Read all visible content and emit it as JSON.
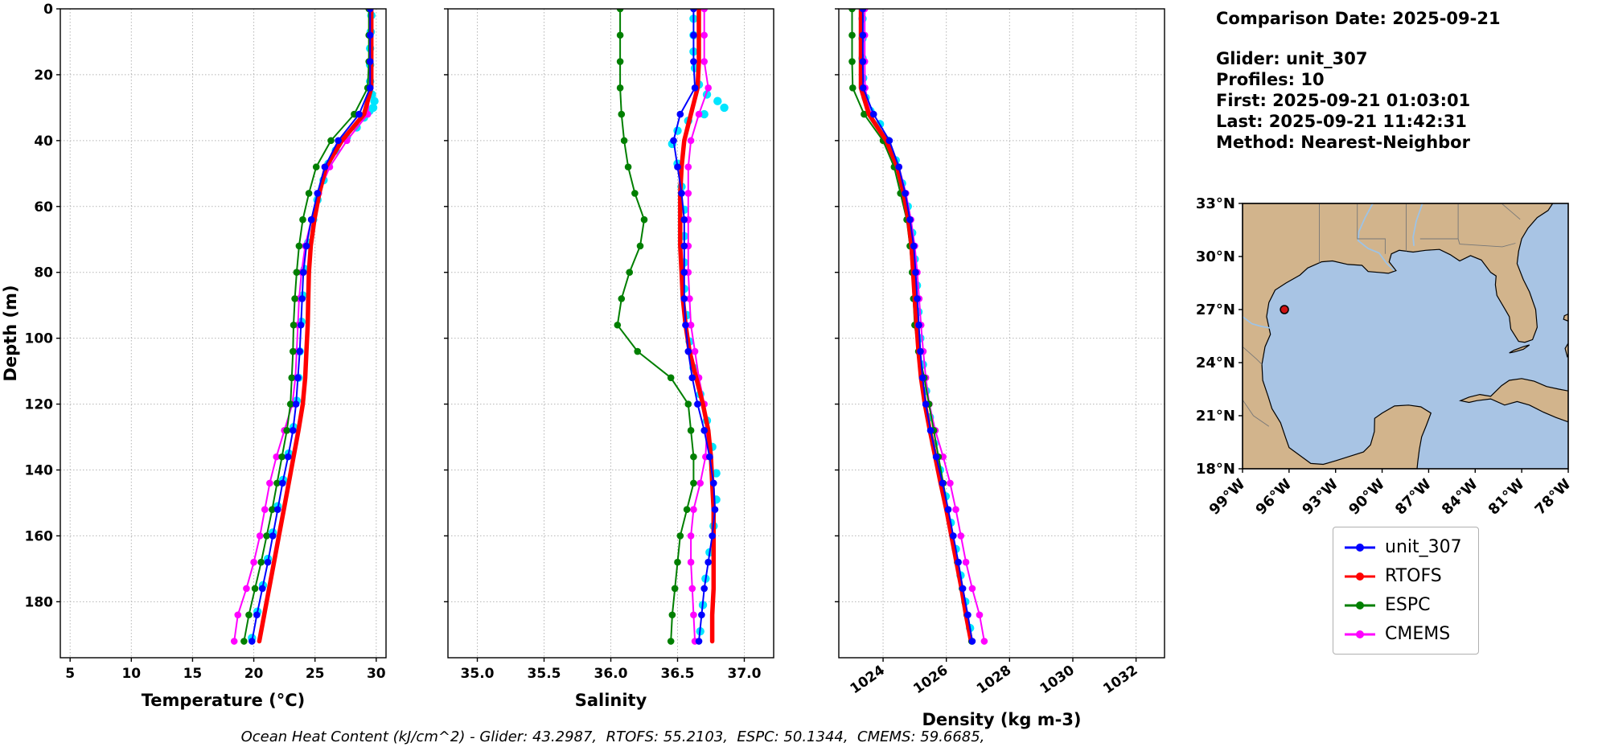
{
  "figure": {
    "background": "#ffffff"
  },
  "info": {
    "comparison_date": "Comparison Date: 2025-09-21",
    "glider": "Glider: unit_307",
    "profiles": "Profiles: 10",
    "first": "First: 2025-09-21 01:03:01",
    "last": "Last: 2025-09-21 11:42:31",
    "method": "Method: Nearest-Neighbor"
  },
  "caption": "Ocean Heat Content (kJ/cm^2) - Glider: 43.2987,  RTOFS: 55.2103,  ESPC: 50.1344,  CMEMS: 59.6685,",
  "legend": {
    "items": [
      {
        "label": "unit_307",
        "color": "#0000ff"
      },
      {
        "label": "RTOFS",
        "color": "#ff0000"
      },
      {
        "label": "ESPC",
        "color": "#007f00"
      },
      {
        "label": "CMEMS",
        "color": "#ff00ff"
      }
    ]
  },
  "map": {
    "extent": {
      "lon_w": [
        99,
        78
      ],
      "lat_n": [
        18,
        33
      ]
    },
    "land_color": "#d2b48c",
    "water_color": "#a8c4e4",
    "lat_tick_values": [
      33,
      30,
      27,
      24,
      21,
      18
    ],
    "lat_tick_labels": [
      "33°N",
      "30°N",
      "27°N",
      "24°N",
      "21°N",
      "18°N"
    ],
    "lon_tick_values": [
      99,
      96,
      93,
      90,
      87,
      84,
      81,
      78
    ],
    "lon_tick_labels": [
      "99°W",
      "96°W",
      "93°W",
      "90°W",
      "87°W",
      "84°W",
      "81°W",
      "78°W"
    ],
    "marker": {
      "lon_w": 96.3,
      "lat_n": 27.0,
      "color": "#cc1111"
    }
  },
  "chart_data": [
    {
      "type": "line",
      "xlabel": "Temperature (°C)",
      "ylabel": "Depth (m)",
      "xlim": [
        4.2,
        30.8
      ],
      "xticks": [
        5,
        10,
        15,
        20,
        25,
        30
      ],
      "xtick_labels": [
        "5",
        "10",
        "15",
        "20",
        "25",
        "30"
      ],
      "ylim": [
        0,
        197
      ],
      "yticks": [
        0,
        20,
        40,
        60,
        80,
        100,
        120,
        140,
        160,
        180
      ],
      "grid": "dotted",
      "depths": [
        0,
        8,
        16,
        24,
        32,
        40,
        48,
        56,
        64,
        72,
        80,
        88,
        96,
        104,
        112,
        120,
        128,
        136,
        144,
        152,
        160,
        168,
        176,
        184,
        192
      ],
      "series": [
        {
          "name": "glider_raw",
          "color": "#00e5ff",
          "style": "scatter",
          "points": [
            [
              29.6,
              2
            ],
            [
              29.55,
              7
            ],
            [
              29.5,
              12
            ],
            [
              29.5,
              17
            ],
            [
              29.5,
              22
            ],
            [
              29.65,
              26
            ],
            [
              29.85,
              28
            ],
            [
              29.75,
              30
            ],
            [
              29.45,
              31
            ],
            [
              29.0,
              33
            ],
            [
              28.4,
              36
            ],
            [
              27.6,
              39
            ],
            [
              26.7,
              43
            ],
            [
              26.1,
              47
            ],
            [
              25.7,
              52
            ],
            [
              25.2,
              58
            ],
            [
              24.85,
              64
            ],
            [
              24.45,
              71
            ],
            [
              24.15,
              79
            ],
            [
              24.0,
              87
            ],
            [
              23.9,
              95
            ],
            [
              23.75,
              104
            ],
            [
              23.65,
              112
            ],
            [
              23.5,
              119
            ],
            [
              23.25,
              127
            ],
            [
              22.85,
              135
            ],
            [
              22.4,
              143
            ],
            [
              21.95,
              151
            ],
            [
              21.55,
              159
            ],
            [
              21.15,
              167
            ],
            [
              20.75,
              175
            ],
            [
              20.3,
              183
            ],
            [
              19.85,
              191
            ]
          ]
        },
        {
          "name": "CMEMS",
          "color": "#ff00ff",
          "style": "line-marker",
          "width": 2,
          "values": [
            29.5,
            29.5,
            29.5,
            29.5,
            29.3,
            27.6,
            26.2,
            25.3,
            24.7,
            24.2,
            23.9,
            23.7,
            23.6,
            23.5,
            23.4,
            23.15,
            22.5,
            21.85,
            21.3,
            20.9,
            20.5,
            20.0,
            19.4,
            18.7,
            18.4
          ]
        },
        {
          "name": "ESPC",
          "color": "#007f00",
          "style": "line-marker",
          "width": 2,
          "values": [
            29.4,
            29.4,
            29.4,
            29.3,
            28.2,
            26.3,
            25.1,
            24.5,
            24.0,
            23.7,
            23.5,
            23.35,
            23.25,
            23.2,
            23.1,
            23.0,
            22.7,
            22.3,
            21.9,
            21.5,
            21.05,
            20.6,
            20.1,
            19.6,
            19.2
          ]
        },
        {
          "name": "RTOFS",
          "color": "#ff0000",
          "style": "line",
          "width": 5.5,
          "values": [
            29.6,
            29.6,
            29.6,
            29.6,
            29.0,
            27.2,
            25.9,
            25.35,
            24.95,
            24.65,
            24.5,
            24.45,
            24.4,
            24.3,
            24.2,
            24.0,
            23.65,
            23.25,
            22.85,
            22.45,
            22.05,
            21.65,
            21.25,
            20.85,
            20.45
          ]
        },
        {
          "name": "unit_307",
          "color": "#0000ff",
          "style": "line-marker",
          "width": 2,
          "values": [
            29.5,
            29.5,
            29.5,
            29.5,
            28.6,
            26.9,
            25.8,
            25.2,
            24.7,
            24.3,
            24.05,
            23.95,
            23.85,
            23.75,
            23.6,
            23.45,
            23.2,
            22.8,
            22.35,
            21.95,
            21.55,
            21.15,
            20.7,
            20.25,
            19.85
          ]
        }
      ]
    },
    {
      "type": "line",
      "xlabel": "Salinity",
      "ylabel": "Depth (m)",
      "xlim": [
        34.78,
        37.22
      ],
      "xticks": [
        35.0,
        35.5,
        36.0,
        36.5,
        37.0
      ],
      "xtick_labels": [
        "35.0",
        "35.5",
        "36.0",
        "36.5",
        "37.0"
      ],
      "ylim": [
        0,
        197
      ],
      "yticks": [
        0,
        20,
        40,
        60,
        80,
        100,
        120,
        140,
        160,
        180
      ],
      "grid": "dotted",
      "depths": [
        0,
        8,
        16,
        24,
        32,
        40,
        48,
        56,
        64,
        72,
        80,
        88,
        96,
        104,
        112,
        120,
        128,
        136,
        144,
        152,
        160,
        168,
        176,
        184,
        192
      ],
      "series": [
        {
          "name": "glider_raw",
          "color": "#00e5ff",
          "style": "scatter",
          "points": [
            [
              36.62,
              3
            ],
            [
              36.62,
              8
            ],
            [
              36.62,
              13
            ],
            [
              36.63,
              18
            ],
            [
              36.66,
              23
            ],
            [
              36.72,
              26
            ],
            [
              36.8,
              28
            ],
            [
              36.85,
              30
            ],
            [
              36.7,
              32
            ],
            [
              36.58,
              34
            ],
            [
              36.5,
              37
            ],
            [
              36.46,
              41
            ],
            [
              36.5,
              47
            ],
            [
              36.53,
              54
            ],
            [
              36.55,
              61
            ],
            [
              36.55,
              69
            ],
            [
              36.55,
              77
            ],
            [
              36.55,
              85
            ],
            [
              36.57,
              93
            ],
            [
              36.59,
              101
            ],
            [
              36.62,
              109
            ],
            [
              36.67,
              117
            ],
            [
              36.72,
              125
            ],
            [
              36.76,
              133
            ],
            [
              36.79,
              141
            ],
            [
              36.79,
              149
            ],
            [
              36.77,
              157
            ],
            [
              36.74,
              165
            ],
            [
              36.71,
              173
            ],
            [
              36.69,
              181
            ],
            [
              36.67,
              189
            ]
          ]
        },
        {
          "name": "CMEMS",
          "color": "#ff00ff",
          "style": "line-marker",
          "width": 2,
          "values": [
            36.7,
            36.7,
            36.7,
            36.73,
            36.66,
            36.6,
            36.58,
            36.58,
            36.58,
            36.58,
            36.58,
            36.59,
            36.6,
            36.63,
            36.66,
            36.7,
            36.72,
            36.71,
            36.67,
            36.62,
            36.6,
            36.6,
            36.61,
            36.62,
            36.63
          ]
        },
        {
          "name": "ESPC",
          "color": "#007f00",
          "style": "line-marker",
          "width": 2,
          "values": [
            36.07,
            36.07,
            36.07,
            36.07,
            36.08,
            36.1,
            36.13,
            36.18,
            36.25,
            36.22,
            36.14,
            36.08,
            36.05,
            36.2,
            36.45,
            36.58,
            36.6,
            36.62,
            36.62,
            36.57,
            36.52,
            36.5,
            36.48,
            36.46,
            36.45
          ]
        },
        {
          "name": "RTOFS",
          "color": "#ff0000",
          "style": "line",
          "width": 5.5,
          "values": [
            36.66,
            36.66,
            36.66,
            36.65,
            36.6,
            36.55,
            36.53,
            36.52,
            36.52,
            36.52,
            36.53,
            36.54,
            36.56,
            36.59,
            36.64,
            36.69,
            36.73,
            36.75,
            36.76,
            36.77,
            36.77,
            36.77,
            36.77,
            36.76,
            36.76
          ]
        },
        {
          "name": "unit_307",
          "color": "#0000ff",
          "style": "line-marker",
          "width": 2,
          "values": [
            36.62,
            36.62,
            36.62,
            36.63,
            36.52,
            36.47,
            36.5,
            36.53,
            36.55,
            36.55,
            36.55,
            36.55,
            36.56,
            36.58,
            36.61,
            36.65,
            36.7,
            36.74,
            36.77,
            36.78,
            36.76,
            36.73,
            36.7,
            36.68,
            36.66
          ]
        }
      ]
    },
    {
      "type": "line",
      "xlabel": "Density (kg m-3)",
      "ylabel": "Depth (m)",
      "xlim": [
        1022.6,
        1032.9
      ],
      "xticks": [
        1024,
        1026,
        1028,
        1030,
        1032
      ],
      "xtick_labels": [
        "1024",
        "1026",
        "1028",
        "1030",
        "1032"
      ],
      "ylim": [
        0,
        197
      ],
      "yticks": [
        0,
        20,
        40,
        60,
        80,
        100,
        120,
        140,
        160,
        180
      ],
      "grid": "dotted",
      "depths": [
        0,
        8,
        16,
        24,
        32,
        40,
        48,
        56,
        64,
        72,
        80,
        88,
        96,
        104,
        112,
        120,
        128,
        136,
        144,
        152,
        160,
        168,
        176,
        184,
        192
      ],
      "series": [
        {
          "name": "glider_raw",
          "color": "#00e5ff",
          "style": "scatter",
          "points": [
            [
              1023.35,
              3
            ],
            [
              1023.35,
              9
            ],
            [
              1023.35,
              15
            ],
            [
              1023.37,
              21
            ],
            [
              1023.45,
              27
            ],
            [
              1023.6,
              31
            ],
            [
              1023.9,
              35
            ],
            [
              1024.15,
              40
            ],
            [
              1024.4,
              46
            ],
            [
              1024.6,
              53
            ],
            [
              1024.78,
              60
            ],
            [
              1024.92,
              68
            ],
            [
              1025.0,
              76
            ],
            [
              1025.07,
              84
            ],
            [
              1025.12,
              92
            ],
            [
              1025.18,
              100
            ],
            [
              1025.26,
              108
            ],
            [
              1025.36,
              116
            ],
            [
              1025.48,
              124
            ],
            [
              1025.62,
              132
            ],
            [
              1025.8,
              140
            ],
            [
              1025.98,
              148
            ],
            [
              1026.14,
              156
            ],
            [
              1026.3,
              164
            ],
            [
              1026.45,
              172
            ],
            [
              1026.6,
              180
            ],
            [
              1026.75,
              188
            ]
          ]
        },
        {
          "name": "CMEMS",
          "color": "#ff00ff",
          "style": "line-marker",
          "width": 2,
          "values": [
            1023.42,
            1023.42,
            1023.42,
            1023.43,
            1023.6,
            1024.1,
            1024.5,
            1024.72,
            1024.88,
            1025.0,
            1025.08,
            1025.14,
            1025.2,
            1025.27,
            1025.35,
            1025.46,
            1025.65,
            1025.9,
            1026.12,
            1026.3,
            1026.46,
            1026.62,
            1026.82,
            1027.05,
            1027.2
          ]
        },
        {
          "name": "ESPC",
          "color": "#007f00",
          "style": "line-marker",
          "width": 2,
          "values": [
            1023.02,
            1023.02,
            1023.02,
            1023.04,
            1023.4,
            1024.0,
            1024.35,
            1024.55,
            1024.75,
            1024.85,
            1024.92,
            1024.96,
            1025.0,
            1025.12,
            1025.3,
            1025.45,
            1025.6,
            1025.75,
            1025.9,
            1026.05,
            1026.2,
            1026.35,
            1026.5,
            1026.65,
            1026.8
          ]
        },
        {
          "name": "RTOFS",
          "color": "#ff0000",
          "style": "line",
          "width": 5.5,
          "values": [
            1023.3,
            1023.3,
            1023.3,
            1023.3,
            1023.55,
            1024.1,
            1024.45,
            1024.65,
            1024.8,
            1024.9,
            1024.95,
            1025.0,
            1025.06,
            1025.12,
            1025.2,
            1025.32,
            1025.48,
            1025.65,
            1025.82,
            1026.0,
            1026.16,
            1026.32,
            1026.48,
            1026.62,
            1026.78
          ]
        },
        {
          "name": "unit_307",
          "color": "#0000ff",
          "style": "line-marker",
          "width": 2,
          "values": [
            1023.36,
            1023.36,
            1023.36,
            1023.37,
            1023.7,
            1024.2,
            1024.5,
            1024.7,
            1024.85,
            1024.97,
            1025.03,
            1025.08,
            1025.13,
            1025.18,
            1025.25,
            1025.35,
            1025.5,
            1025.68,
            1025.88,
            1026.06,
            1026.22,
            1026.38,
            1026.52,
            1026.68,
            1026.82
          ]
        }
      ]
    }
  ]
}
